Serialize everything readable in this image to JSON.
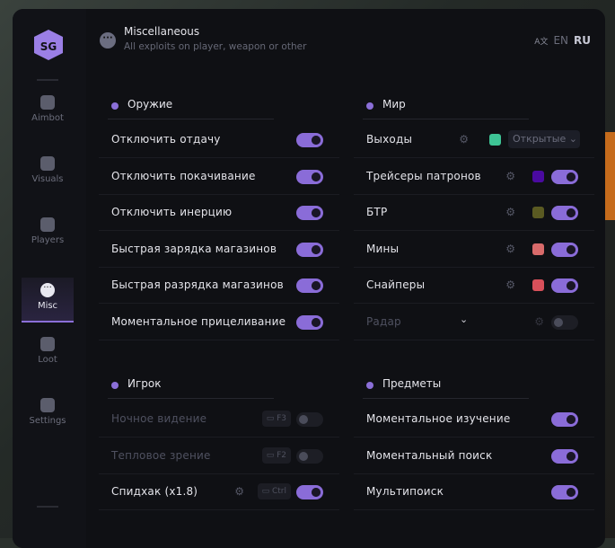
{
  "header": {
    "title": "Miscellaneous",
    "subtitle": "All exploits on player, weapon or other",
    "lang_en": "EN",
    "lang_ru": "RU",
    "translate_icon": "translate-icon"
  },
  "sidebar": {
    "items": [
      {
        "label": "Aimbot",
        "icon": "alien-icon"
      },
      {
        "label": "Visuals",
        "icon": "vr-headset-icon"
      },
      {
        "label": "Players",
        "icon": "users-icon"
      },
      {
        "label": "Misc",
        "icon": "dots-icon",
        "active": true
      },
      {
        "label": "Loot",
        "icon": "briefcase-icon"
      },
      {
        "label": "Settings",
        "icon": "list-icon"
      }
    ]
  },
  "accent": "#8b6fd8",
  "sections": {
    "weapon": {
      "title": "Оружие",
      "rows": [
        {
          "label": "Отключить отдачу",
          "on": true
        },
        {
          "label": "Отключить покачивание",
          "on": true
        },
        {
          "label": "Отключить инерцию",
          "on": true
        },
        {
          "label": "Быстрая зарядка магазинов",
          "on": true
        },
        {
          "label": "Быстрая разрядка магазинов",
          "on": true
        },
        {
          "label": "Моментальное прицеливание",
          "on": true
        }
      ]
    },
    "world": {
      "title": "Мир",
      "rows": [
        {
          "label": "Выходы",
          "color": "#3ec495",
          "select": "Открытые"
        },
        {
          "label": "Трейсеры патронов",
          "color": "#4a0aa0",
          "on": true
        },
        {
          "label": "БТР",
          "color": "#5a5a22",
          "on": true
        },
        {
          "label": "Мины",
          "color": "#d86a6a",
          "on": true
        },
        {
          "label": "Снайперы",
          "color": "#d8505a",
          "on": true
        },
        {
          "label": "Радар",
          "on": false,
          "disabled": true,
          "expand": true
        }
      ]
    },
    "player": {
      "title": "Игрок",
      "rows": [
        {
          "label": "Ночное видение",
          "key": "F3",
          "on": false,
          "disabled": true
        },
        {
          "label": "Тепловое зрение",
          "key": "F2",
          "on": false,
          "disabled": true
        },
        {
          "label": "Спидхак (x1.8)",
          "key": "Ctrl",
          "on": true,
          "gear": true
        }
      ]
    },
    "items": {
      "title": "Предметы",
      "rows": [
        {
          "label": "Моментальное изучение",
          "on": true
        },
        {
          "label": "Моментальный поиск",
          "on": true
        },
        {
          "label": "Мультипоиск",
          "on": true
        }
      ]
    }
  }
}
